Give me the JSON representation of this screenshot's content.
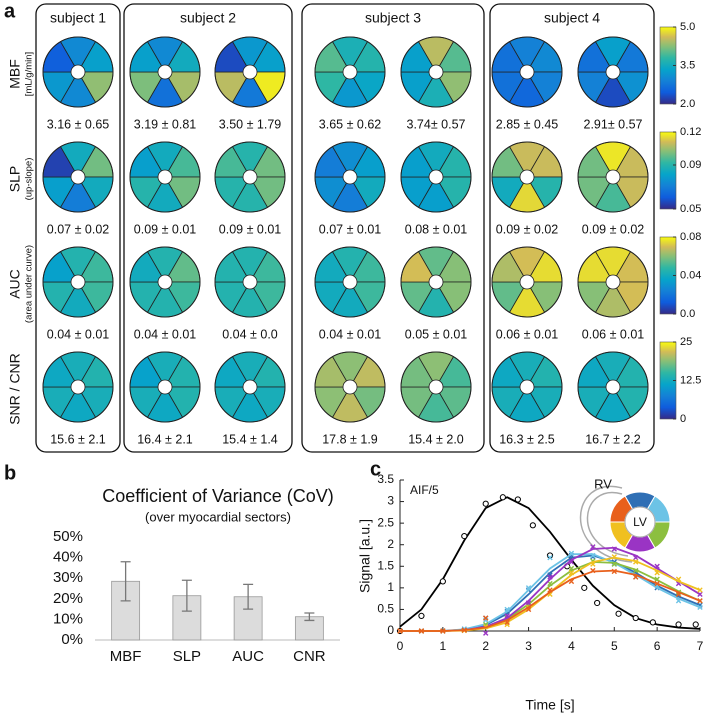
{
  "chart_data": [
    {
      "type": "bullseye",
      "panel_label": "a",
      "subjects": [
        "subject 1",
        "subject 2",
        "subject 3",
        "subject 4"
      ],
      "rows": [
        {
          "label": "MBF",
          "sublabel": "[mL/g/min]",
          "clim": [
            2,
            5
          ],
          "cticks": [
            {
              "value": 2,
              "label": "2.0"
            },
            3.5,
            {
              "value": 5,
              "label": "5.0"
            }
          ],
          "cells": [
            [
              {
                "values": [
                  3.0,
                  3.3,
                  4.3,
                  3.0,
                  3.2,
                  2.5
                ],
                "label": "3.16 ± 0.65"
              }
            ],
            [
              {
                "values": [
                  3.0,
                  3.5,
                  4.4,
                  2.7,
                  4.2,
                  3.3
                ],
                "label": "3.19 ± 0.81"
              },
              {
                "values": [
                  3.2,
                  3.3,
                  4.9,
                  2.8,
                  4.5,
                  2.3
                ],
                "label": "3.50 ± 1.79"
              }
            ],
            [
              {
                "values": [
                  3.6,
                  3.7,
                  3.4,
                  3.2,
                  3.8,
                  4.0
                ],
                "label": "3.65 ± 0.62"
              },
              {
                "values": [
                  4.5,
                  4.0,
                  4.3,
                  3.6,
                  3.3,
                  3.3
                ],
                "label": "3.74± 0.57"
              }
            ],
            [
              {
                "values": [
                  2.9,
                  3.0,
                  2.9,
                  2.6,
                  2.7,
                  2.7
                ],
                "label": "2.85 ± 0.45"
              },
              {
                "values": [
                  3.3,
                  2.8,
                  3.1,
                  2.3,
                  2.9,
                  2.7
                ],
                "label": "2.91± 0.57"
              }
            ]
          ]
        },
        {
          "label": "SLP",
          "sublabel": "(up-slope)",
          "clim": [
            0.05,
            0.12
          ],
          "cticks": [
            0.05,
            0.09,
            0.12
          ],
          "cells": [
            [
              {
                "values": [
                  0.085,
                  0.1,
                  0.085,
                  0.07,
                  0.08,
                  0.055
                ],
                "label": "0.07 ± 0.02"
              }
            ],
            [
              {
                "values": [
                  0.085,
                  0.095,
                  0.1,
                  0.085,
                  0.09,
                  0.08
                ],
                "label": "0.09 ± 0.01"
              },
              {
                "values": [
                  0.09,
                  0.1,
                  0.1,
                  0.09,
                  0.09,
                  0.095
                ],
                "label": "0.09 ± 0.01"
              }
            ],
            [
              {
                "values": [
                  0.075,
                  0.08,
                  0.085,
                  0.07,
                  0.075,
                  0.07
                ],
                "label": "0.07 ± 0.01"
              },
              {
                "values": [
                  0.085,
                  0.09,
                  0.09,
                  0.08,
                  0.08,
                  0.08
                ],
                "label": "0.08 ± 0.01"
              }
            ],
            [
              {
                "values": [
                  0.11,
                  0.11,
                  0.09,
                  0.115,
                  0.085,
                  0.1
                ],
                "label": "0.09 ± 0.02"
              },
              {
                "values": [
                  0.117,
                  0.11,
                  0.11,
                  0.095,
                  0.1,
                  0.1
                ],
                "label": "0.09 ± 0.02"
              }
            ]
          ]
        },
        {
          "label": "AUC",
          "sublabel": "(area under curve)",
          "clim": [
            0,
            0.08
          ],
          "cticks": [
            {
              "value": 0,
              "label": "0.0"
            },
            0.04,
            0.08
          ],
          "cells": [
            [
              {
                "values": [
                  0.045,
                  0.05,
                  0.05,
                  0.04,
                  0.045,
                  0.035
                ],
                "label": "0.04 ± 0.01"
              }
            ],
            [
              {
                "values": [
                  0.045,
                  0.055,
                  0.05,
                  0.045,
                  0.045,
                  0.04
                ],
                "label": "0.04 ± 0.01"
              },
              {
                "values": [
                  0.045,
                  0.05,
                  0.05,
                  0.045,
                  0.045,
                  0.045
                ],
                "label": "0.04 ± 0.0"
              }
            ],
            [
              {
                "values": [
                  0.045,
                  0.05,
                  0.05,
                  0.04,
                  0.04,
                  0.04
                ],
                "label": "0.04 ± 0.01"
              },
              {
                "values": [
                  0.055,
                  0.06,
                  0.06,
                  0.045,
                  0.055,
                  0.07
                ],
                "label": "0.05 ± 0.01"
              }
            ],
            [
              {
                "values": [
                  0.07,
                  0.075,
                  0.06,
                  0.075,
                  0.055,
                  0.065
                ],
                "label": "0.06 ± 0.01"
              },
              {
                "values": [
                  0.075,
                  0.07,
                  0.07,
                  0.065,
                  0.06,
                  0.075
                ],
                "label": "0.06 ± 0.01"
              }
            ]
          ]
        },
        {
          "label": "SNR / CNR",
          "clim": [
            0,
            25
          ],
          "cticks": [
            0,
            12.5,
            25
          ],
          "cells": [
            [
              {
                "values": [
                  13,
                  14,
                  13,
                  12,
                  13,
                  12
                ],
                "label": "15.6 ± 2.1"
              }
            ],
            [
              {
                "values": [
                  13,
                  14,
                  14,
                  12,
                  13,
                  11
                ],
                "label": "16.4 ± 2.1"
              },
              {
                "values": [
                  13,
                  14,
                  13,
                  12,
                  13,
                  12
                ],
                "label": "15.4 ± 1.4"
              }
            ],
            [
              {
                "values": [
                  19,
                  21,
                  18,
                  21,
                  19,
                  20
                ],
                "label": "17.8 ± 1.9"
              },
              {
                "values": [
                  19,
                  16,
                  17,
                  16,
                  18,
                  18
                ],
                "label": "15.4 ± 2.0"
              }
            ],
            [
              {
                "values": [
                  13,
                  14,
                  13,
                  12,
                  13,
                  12
                ],
                "label": "16.3 ± 2.5"
              },
              {
                "values": [
                  13,
                  14,
                  14,
                  12,
                  13,
                  12
                ],
                "label": "16.7 ± 2.2"
              }
            ]
          ]
        }
      ]
    },
    {
      "type": "bar",
      "panel_label": "b",
      "title": "Coefficient of Variance (CoV)",
      "subtitle": "(over myocardial sectors)",
      "categories": [
        "MBF",
        "SLP",
        "AUC",
        "CNR"
      ],
      "values": [
        28.5,
        21.5,
        21,
        11.3
      ],
      "errors": [
        9.5,
        7.5,
        6,
        1.8
      ],
      "color": "#dcdcdc",
      "ylim": [
        0,
        50
      ],
      "yticks": [
        {
          "value": 0,
          "label": "0%"
        },
        {
          "value": 10,
          "label": "10%"
        },
        {
          "value": 20,
          "label": "20%"
        },
        {
          "value": 30,
          "label": "30%"
        },
        {
          "value": 40,
          "label": "40%"
        },
        {
          "value": 50,
          "label": "50%"
        }
      ]
    },
    {
      "type": "line",
      "panel_label": "c",
      "xlabel": "Time [s]",
      "ylabel": "Signal [a.u.]",
      "inset_labels": [
        "RV",
        "LV"
      ],
      "x": [
        0,
        0.5,
        1,
        1.5,
        2,
        2.5,
        3,
        3.5,
        4,
        4.5,
        5,
        5.5,
        6,
        6.5,
        7
      ],
      "xlim": [
        0,
        7
      ],
      "ylim": [
        0,
        3.5
      ],
      "xticks": [
        0,
        1,
        2,
        3,
        4,
        5,
        6,
        7
      ],
      "yticks": [
        0,
        0.5,
        1,
        1.5,
        2,
        2.5,
        3,
        3.5
      ],
      "series": [
        {
          "name": "AIF/5",
          "color": "#000000",
          "marker": "circle",
          "values": [
            0.1,
            0.5,
            1.2,
            2.1,
            2.85,
            3.1,
            2.85,
            2.3,
            1.65,
            1.05,
            0.6,
            0.3,
            0.15,
            0.08,
            0.05
          ],
          "points_x": [
            0,
            0.5,
            1,
            1.5,
            2,
            2.4,
            2.75,
            3.1,
            3.5,
            3.9,
            4.3,
            4.6,
            5.1,
            5.5,
            5.9,
            6.5,
            6.9
          ],
          "points": [
            0,
            0.35,
            1.15,
            2.2,
            2.95,
            3.1,
            3.05,
            2.45,
            1.75,
            1.5,
            1.0,
            0.65,
            0.4,
            0.3,
            0.2,
            0.15,
            0.15
          ]
        },
        {
          "color": "#2f6fb5",
          "marker": "x",
          "values": [
            0,
            0,
            0,
            0.03,
            0.14,
            0.4,
            0.85,
            1.35,
            1.7,
            1.75,
            1.6,
            1.35,
            1.05,
            0.8,
            0.6
          ],
          "points": [
            0,
            0,
            0,
            0.02,
            0.3,
            0.45,
            0.95,
            1.3,
            1.75,
            1.72,
            1.6,
            1.38,
            1.0,
            0.82,
            0.6
          ]
        },
        {
          "color": "#6cc3e6",
          "marker": "x",
          "values": [
            0,
            0,
            0,
            0.04,
            0.16,
            0.45,
            0.95,
            1.45,
            1.78,
            1.78,
            1.58,
            1.3,
            1.0,
            0.75,
            0.55
          ],
          "points": [
            0,
            0,
            0,
            0.05,
            0.25,
            0.5,
            1.0,
            1.7,
            1.8,
            1.75,
            1.55,
            1.25,
            1.05,
            0.7,
            0.55
          ]
        },
        {
          "color": "#8cbf3f",
          "marker": "x",
          "values": [
            0,
            0,
            0,
            0.02,
            0.09,
            0.28,
            0.62,
            1.05,
            1.4,
            1.6,
            1.58,
            1.42,
            1.18,
            0.92,
            0.7
          ],
          "points": [
            0,
            0,
            0,
            0.02,
            0.15,
            0.3,
            0.6,
            1.1,
            1.45,
            1.62,
            1.55,
            1.4,
            1.2,
            0.9,
            0.7
          ]
        },
        {
          "color": "#9a34c4",
          "marker": "x",
          "values": [
            0,
            0,
            0,
            0.02,
            0.1,
            0.3,
            0.7,
            1.2,
            1.65,
            1.9,
            1.93,
            1.75,
            1.45,
            1.15,
            0.85
          ],
          "points": [
            0,
            0,
            0,
            0.02,
            -0.05,
            0.35,
            0.65,
            1.25,
            1.6,
            1.95,
            1.9,
            1.7,
            1.5,
            1.1,
            0.85
          ]
        },
        {
          "color": "#f0c020",
          "marker": "x",
          "values": [
            0,
            0,
            0,
            0.01,
            0.06,
            0.2,
            0.5,
            0.9,
            1.3,
            1.6,
            1.7,
            1.62,
            1.4,
            1.15,
            0.95
          ],
          "points": [
            0,
            0,
            0,
            0.01,
            0.1,
            0.15,
            0.55,
            0.85,
            1.35,
            1.55,
            1.72,
            1.6,
            1.35,
            1.2,
            0.95
          ]
        },
        {
          "color": "#e8601c",
          "marker": "x",
          "values": [
            0,
            0,
            0,
            0.02,
            0.08,
            0.25,
            0.55,
            0.9,
            1.2,
            1.38,
            1.4,
            1.3,
            1.1,
            0.9,
            0.7
          ],
          "points": [
            0,
            0,
            0,
            0.02,
            0.3,
            0.2,
            0.5,
            0.95,
            1.15,
            1.4,
            1.38,
            1.25,
            1.1,
            0.85,
            0.7
          ]
        }
      ]
    }
  ]
}
